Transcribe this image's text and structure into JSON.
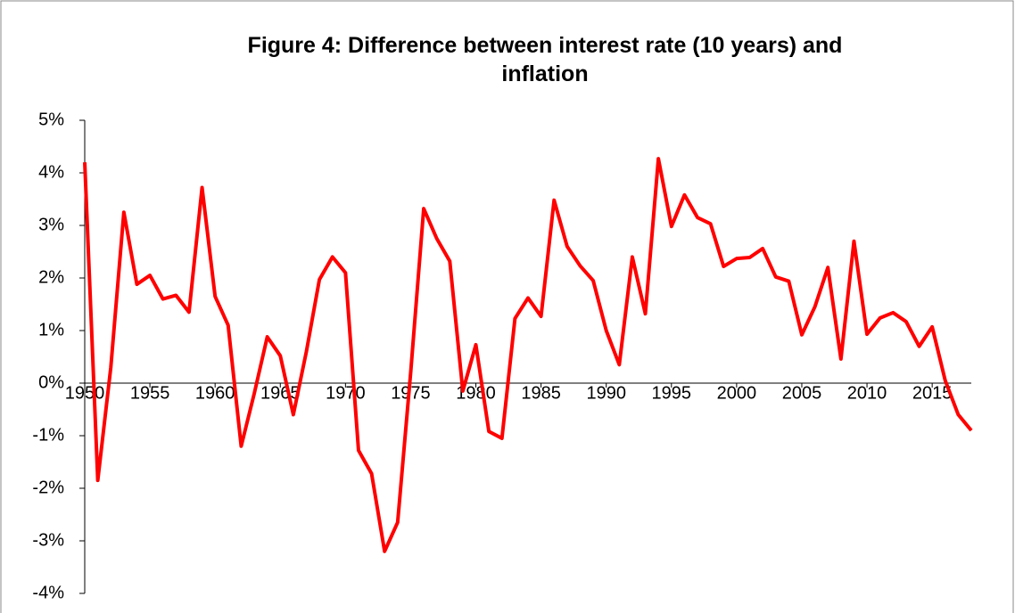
{
  "chart_data": {
    "type": "line",
    "title": "Figure 4: Difference between interest rate (10 years) and inflation",
    "x": [
      1950,
      1951,
      1952,
      1953,
      1954,
      1955,
      1956,
      1957,
      1958,
      1959,
      1960,
      1961,
      1962,
      1963,
      1964,
      1965,
      1966,
      1967,
      1968,
      1969,
      1970,
      1971,
      1972,
      1973,
      1974,
      1975,
      1976,
      1977,
      1978,
      1979,
      1980,
      1981,
      1982,
      1983,
      1984,
      1985,
      1986,
      1987,
      1988,
      1989,
      1990,
      1991,
      1992,
      1993,
      1994,
      1995,
      1996,
      1997,
      1998,
      1999,
      2000,
      2001,
      2002,
      2003,
      2004,
      2005,
      2006,
      2007,
      2008,
      2009,
      2010,
      2011,
      2012,
      2013,
      2014,
      2015,
      2016,
      2017,
      2018
    ],
    "series": [
      {
        "color": "#ff0000",
        "values": [
          4.2,
          -1.85,
          0.3,
          3.25,
          1.88,
          2.05,
          1.6,
          1.67,
          1.35,
          3.72,
          1.65,
          1.1,
          -1.2,
          -0.2,
          0.88,
          0.52,
          -0.6,
          0.6,
          1.97,
          2.4,
          2.1,
          -1.28,
          -1.72,
          -3.2,
          -2.65,
          0.2,
          3.32,
          2.75,
          2.32,
          -0.15,
          0.73,
          -0.92,
          -1.05,
          1.23,
          1.62,
          1.27,
          3.48,
          2.6,
          2.23,
          1.95,
          1.0,
          0.35,
          2.4,
          1.32,
          4.27,
          2.98,
          3.58,
          3.15,
          3.03,
          2.22,
          2.37,
          2.39,
          2.56,
          2.02,
          1.94,
          0.92,
          1.45,
          2.2,
          0.46,
          2.7,
          0.93,
          1.24,
          1.34,
          1.17,
          0.7,
          1.07,
          0.05,
          -0.6,
          -0.9
        ]
      }
    ],
    "xlim": [
      1950,
      2018
    ],
    "xticks": [
      1950,
      1955,
      1960,
      1965,
      1970,
      1975,
      1980,
      1985,
      1990,
      1995,
      2000,
      2005,
      2010,
      2015
    ],
    "ylim": [
      -4,
      5
    ],
    "yticks": [
      {
        "value": -4,
        "label": "-4%"
      },
      {
        "value": -3,
        "label": "-3%"
      },
      {
        "value": -2,
        "label": "-2%"
      },
      {
        "value": -1,
        "label": "-1%"
      },
      {
        "value": 0,
        "label": "0%"
      },
      {
        "value": 1,
        "label": "1%"
      },
      {
        "value": 2,
        "label": "2%"
      },
      {
        "value": 3,
        "label": "3%"
      },
      {
        "value": 4,
        "label": "4%"
      },
      {
        "value": 5,
        "label": "5%"
      }
    ],
    "grid": false
  }
}
